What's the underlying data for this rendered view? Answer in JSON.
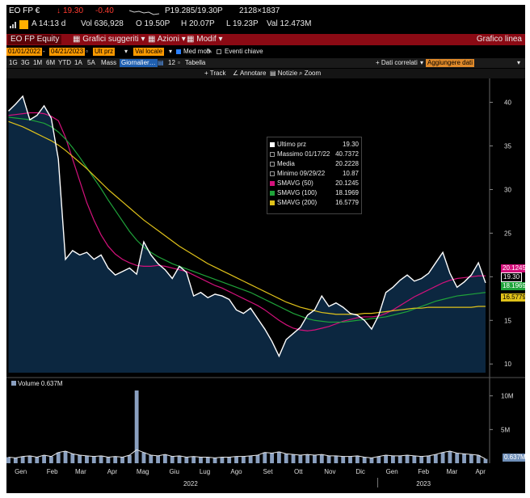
{
  "header": {
    "ticker": "EO FP €",
    "last": "19.30",
    "change": "-0.40",
    "bidask": "P19.285/19.30P",
    "size": "2128×1837",
    "time": "A 14:13 d",
    "volume": "Vol 636,928",
    "open": "O 19.50P",
    "high": "H 20.07P",
    "low": "L 19.23P",
    "value": "Val 12.473M"
  },
  "toolbar": {
    "security": "EO FP Equity",
    "suggested": "Grafici suggeriti",
    "actions": "Azioni",
    "modify": "Modif",
    "chart_type": "Grafico linea"
  },
  "settings": {
    "start_date": "01/01/2022",
    "end_date": "04/21/2023",
    "price_field": "Ult prz",
    "currency": "Val locale",
    "moving_avg": "Med mob",
    "key_events": "Eventi chiave"
  },
  "periods": [
    "1G",
    "3G",
    "1M",
    "6M",
    "YTD",
    "1A",
    "5A",
    "Mass",
    "Giornalier…",
    "12",
    "Tabella"
  ],
  "right_tools": {
    "related": "+ Dati correlati",
    "add": "Aggiungere dati"
  },
  "chart_tools": [
    "Track",
    "Annotare",
    "Notizie",
    "Zoom"
  ],
  "colors": {
    "price": "#ffffff",
    "sma50": "#d4117c",
    "sma100": "#1fa33a",
    "sma200": "#e0c21a",
    "area": "#0c2740",
    "header_bar": "#8b0a14"
  },
  "legend": {
    "items": [
      {
        "label": "Ultimo prz",
        "value": "19.30"
      },
      {
        "label": "Massimo 01/17/22",
        "value": "40.7372"
      },
      {
        "label": "Media",
        "value": "20.2228"
      },
      {
        "label": "Minimo 09/29/22",
        "value": "10.87"
      },
      {
        "label": "SMAVG (50)",
        "value": "20.1245"
      },
      {
        "label": "SMAVG (100)",
        "value": "18.1969"
      },
      {
        "label": "SMAVG (200)",
        "value": "16.5779"
      }
    ]
  },
  "price_tags": [
    "20.1245",
    "19.30",
    "18.1969",
    "16.5779"
  ],
  "volume_panel": {
    "label": "Volume 0.637M",
    "tag": "0.637M"
  },
  "chart_data": {
    "type": "line",
    "ylim": [
      9,
      42
    ],
    "yticks": [
      10,
      15,
      20,
      25,
      30,
      35,
      40
    ],
    "vol_ticks": [
      "10M",
      "5M"
    ],
    "x_months": [
      "Gen",
      "Feb",
      "Mar",
      "Apr",
      "Mag",
      "Giu",
      "Lug",
      "Ago",
      "Set",
      "Ott",
      "Nov",
      "Dic",
      "Gen",
      "Feb",
      "Mar",
      "Apr"
    ],
    "x_years": [
      "2022",
      "2023"
    ],
    "dates": [
      "2022-01-03",
      "2022-01-10",
      "2022-01-17",
      "2022-01-24",
      "2022-01-31",
      "2022-02-07",
      "2022-02-14",
      "2022-02-21",
      "2022-02-28",
      "2022-03-07",
      "2022-03-14",
      "2022-03-21",
      "2022-03-28",
      "2022-04-04",
      "2022-04-11",
      "2022-04-18",
      "2022-04-25",
      "2022-05-02",
      "2022-05-09",
      "2022-05-16",
      "2022-05-23",
      "2022-05-30",
      "2022-06-06",
      "2022-06-13",
      "2022-06-20",
      "2022-06-27",
      "2022-07-04",
      "2022-07-11",
      "2022-07-18",
      "2022-07-25",
      "2022-08-01",
      "2022-08-08",
      "2022-08-15",
      "2022-08-22",
      "2022-08-29",
      "2022-09-05",
      "2022-09-12",
      "2022-09-19",
      "2022-09-26",
      "2022-10-03",
      "2022-10-10",
      "2022-10-17",
      "2022-10-24",
      "2022-10-31",
      "2022-11-07",
      "2022-11-14",
      "2022-11-21",
      "2022-11-28",
      "2022-12-05",
      "2022-12-12",
      "2022-12-19",
      "2022-12-26",
      "2023-01-02",
      "2023-01-09",
      "2023-01-16",
      "2023-01-23",
      "2023-01-30",
      "2023-02-06",
      "2023-02-13",
      "2023-02-20",
      "2023-02-27",
      "2023-03-06",
      "2023-03-13",
      "2023-03-20",
      "2023-03-27",
      "2023-04-03",
      "2023-04-10",
      "2023-04-17"
    ],
    "series": [
      {
        "name": "Ultimo prz",
        "values": [
          39.0,
          39.8,
          40.7,
          38.0,
          38.5,
          39.6,
          38.2,
          33.5,
          22.0,
          23.0,
          22.5,
          22.8,
          22.0,
          22.5,
          21.0,
          20.2,
          20.6,
          21.0,
          20.3,
          24.0,
          22.5,
          21.5,
          20.8,
          19.8,
          21.2,
          20.5,
          17.8,
          18.2,
          17.6,
          18.0,
          17.8,
          17.4,
          16.2,
          15.8,
          16.4,
          15.2,
          14.0,
          12.6,
          10.9,
          12.8,
          13.5,
          14.2,
          15.6,
          16.2,
          17.8,
          16.6,
          17.0,
          16.5,
          15.8,
          15.6,
          15.0,
          14.0,
          15.6,
          18.2,
          18.8,
          19.6,
          20.2,
          19.5,
          19.8,
          20.4,
          21.6,
          22.8,
          20.4,
          18.8,
          19.4,
          20.2,
          21.6,
          19.3
        ]
      },
      {
        "name": "SMAVG (50)",
        "values": [
          38.5,
          38.6,
          38.7,
          38.8,
          38.8,
          38.7,
          38.4,
          37.9,
          36.0,
          33.5,
          31.0,
          28.5,
          26.5,
          24.8,
          23.5,
          22.6,
          22.0,
          21.6,
          21.3,
          21.2,
          21.2,
          21.3,
          21.2,
          21.0,
          20.8,
          20.6,
          20.2,
          19.8,
          19.4,
          19.0,
          18.7,
          18.3,
          17.9,
          17.5,
          17.1,
          16.7,
          16.2,
          15.6,
          15.0,
          14.5,
          14.1,
          13.9,
          13.8,
          13.9,
          14.1,
          14.3,
          14.6,
          14.9,
          15.1,
          15.3,
          15.4,
          15.4,
          15.5,
          15.8,
          16.2,
          16.7,
          17.2,
          17.7,
          18.1,
          18.5,
          18.9,
          19.3,
          19.6,
          19.8,
          19.9,
          20.0,
          20.1,
          20.1
        ]
      },
      {
        "name": "SMAVG (100)",
        "values": [
          38.3,
          38.2,
          38.1,
          38.0,
          37.8,
          37.6,
          37.2,
          36.6,
          35.8,
          34.8,
          33.7,
          32.5,
          31.3,
          30.1,
          28.8,
          27.6,
          26.4,
          25.2,
          24.2,
          23.4,
          22.8,
          22.3,
          21.9,
          21.5,
          21.2,
          20.9,
          20.6,
          20.3,
          20.0,
          19.7,
          19.4,
          19.1,
          18.8,
          18.5,
          18.2,
          17.8,
          17.4,
          17.0,
          16.6,
          16.2,
          15.8,
          15.5,
          15.2,
          15.0,
          14.9,
          14.8,
          14.8,
          14.8,
          14.9,
          15.0,
          15.1,
          15.2,
          15.3,
          15.4,
          15.6,
          15.8,
          16.0,
          16.3,
          16.6,
          16.9,
          17.2,
          17.4,
          17.6,
          17.8,
          17.9,
          18.0,
          18.1,
          18.2
        ]
      },
      {
        "name": "SMAVG (200)",
        "values": [
          37.8,
          37.5,
          37.2,
          36.8,
          36.4,
          36.0,
          35.6,
          35.1,
          34.5,
          33.8,
          33.1,
          32.4,
          31.6,
          30.8,
          30.0,
          29.3,
          28.6,
          27.9,
          27.2,
          26.5,
          25.9,
          25.3,
          24.7,
          24.1,
          23.5,
          23.0,
          22.5,
          22.0,
          21.5,
          21.1,
          20.7,
          20.3,
          19.9,
          19.5,
          19.1,
          18.7,
          18.3,
          17.9,
          17.5,
          17.1,
          16.8,
          16.5,
          16.3,
          16.1,
          15.9,
          15.8,
          15.7,
          15.7,
          15.7,
          15.7,
          15.8,
          15.8,
          15.9,
          16.0,
          16.1,
          16.2,
          16.3,
          16.4,
          16.4,
          16.5,
          16.5,
          16.5,
          16.5,
          16.5,
          16.5,
          16.5,
          16.6,
          16.6
        ]
      },
      {
        "name": "Volume",
        "values": [
          0.9,
          0.8,
          1.0,
          1.1,
          0.9,
          1.2,
          1.0,
          1.6,
          1.8,
          1.4,
          1.2,
          1.1,
          1.0,
          1.1,
          0.9,
          1.0,
          0.9,
          1.2,
          10.8,
          1.6,
          1.2,
          1.1,
          1.3,
          1.0,
          1.1,
          0.9,
          1.0,
          0.9,
          0.9,
          0.8,
          0.9,
          0.9,
          1.0,
          1.0,
          1.1,
          1.2,
          1.6,
          1.5,
          1.7,
          1.4,
          1.3,
          1.2,
          1.3,
          1.2,
          1.3,
          1.1,
          1.1,
          1.0,
          1.0,
          1.1,
          0.9,
          0.8,
          1.0,
          1.2,
          1.1,
          1.1,
          1.2,
          1.1,
          1.0,
          1.1,
          1.3,
          1.6,
          1.8,
          1.5,
          1.4,
          1.3,
          1.2,
          0.64
        ]
      }
    ]
  }
}
